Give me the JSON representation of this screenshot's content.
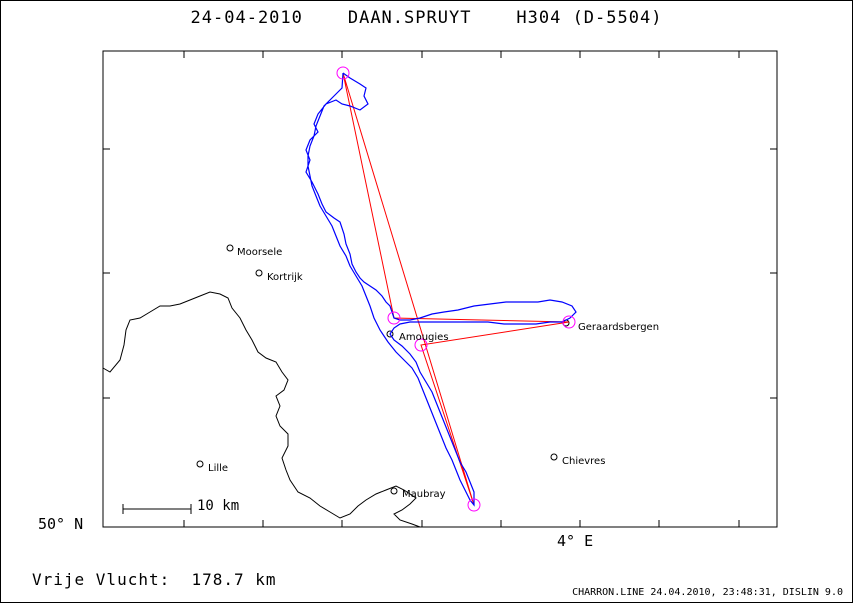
{
  "header": {
    "date": "24-04-2010",
    "pilot": "DAAN.SPRUYT",
    "glider": "H304 (D-5504)"
  },
  "axes": {
    "lat_label": "50° N",
    "lon_label": "4° E"
  },
  "scale_bar": {
    "label": "10 km"
  },
  "places": [
    {
      "name": "Moorsele"
    },
    {
      "name": "Kortrijk"
    },
    {
      "name": "Amougies"
    },
    {
      "name": "Geraardsbergen"
    },
    {
      "name": "Lille"
    },
    {
      "name": "Maubray"
    },
    {
      "name": "Chievres"
    }
  ],
  "flight": {
    "label": "Vrije Vlucht:",
    "distance": "178.7 km"
  },
  "footer": {
    "text": "CHARRON.LINE 24.04.2010, 23:48:31, DISLIN 9.0"
  },
  "colors": {
    "track": "#0000ff",
    "task": "#ff0000",
    "turnpoint": "#ff00ff",
    "border": "#000000"
  }
}
